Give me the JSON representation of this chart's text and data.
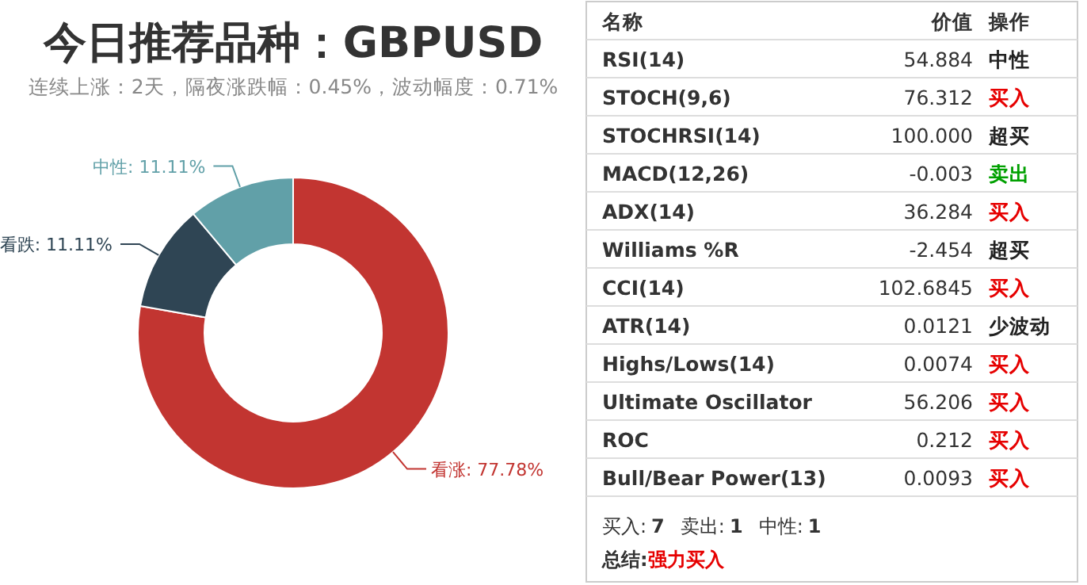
{
  "chart_data": [
    {
      "type": "donut",
      "title": "今日推荐品种：GBPUSD",
      "subtitle": "连续上涨：2天，隔夜涨跌幅：0.45%，波动幅度：0.71%",
      "categories": [
        "看涨",
        "看跌",
        "中性"
      ],
      "values": [
        77.78,
        11.11,
        11.11
      ],
      "value_labels": [
        ": 77.78%",
        ": 11.11%",
        ": 11.11%"
      ],
      "colors": [
        "#c23531",
        "#2f4554",
        "#61a0a8"
      ]
    },
    {
      "type": "other",
      "categories": [
        "RSI(14)",
        "STOCH(9,6)",
        "STOCHRSI(14)",
        "MACD(12,26)",
        "ADX(14)",
        "Williams %R",
        "CCI(14)",
        "ATR(14)",
        "Highs/Lows(14)",
        "Ultimate Oscillator",
        "ROC",
        "Bull/Bear Power(13)"
      ],
      "value_labels": [
        "54.884",
        "76.312",
        "100.000",
        "-0.003",
        "36.284",
        "-2.454",
        "102.6845",
        "0.0121",
        "0.0074",
        "56.206",
        "0.212",
        "0.0093"
      ],
      "colors": [
        "#222222",
        "#e60000",
        "#222222",
        "#00a000",
        "#e60000",
        "#222222",
        "#e60000",
        "#222222",
        "#e60000",
        "#e60000",
        "#e60000",
        "#e60000"
      ],
      "annotations": [
        "名称",
        "价值",
        "操作",
        "中性",
        "买入",
        "超买",
        "卖出",
        "买入",
        "超买",
        "买入",
        "少波动",
        "买入",
        "买入",
        "买入",
        "买入",
        "买入:",
        "7",
        "卖出:",
        "1",
        "中性:",
        "1",
        "总结:",
        "强力买入"
      ]
    }
  ]
}
